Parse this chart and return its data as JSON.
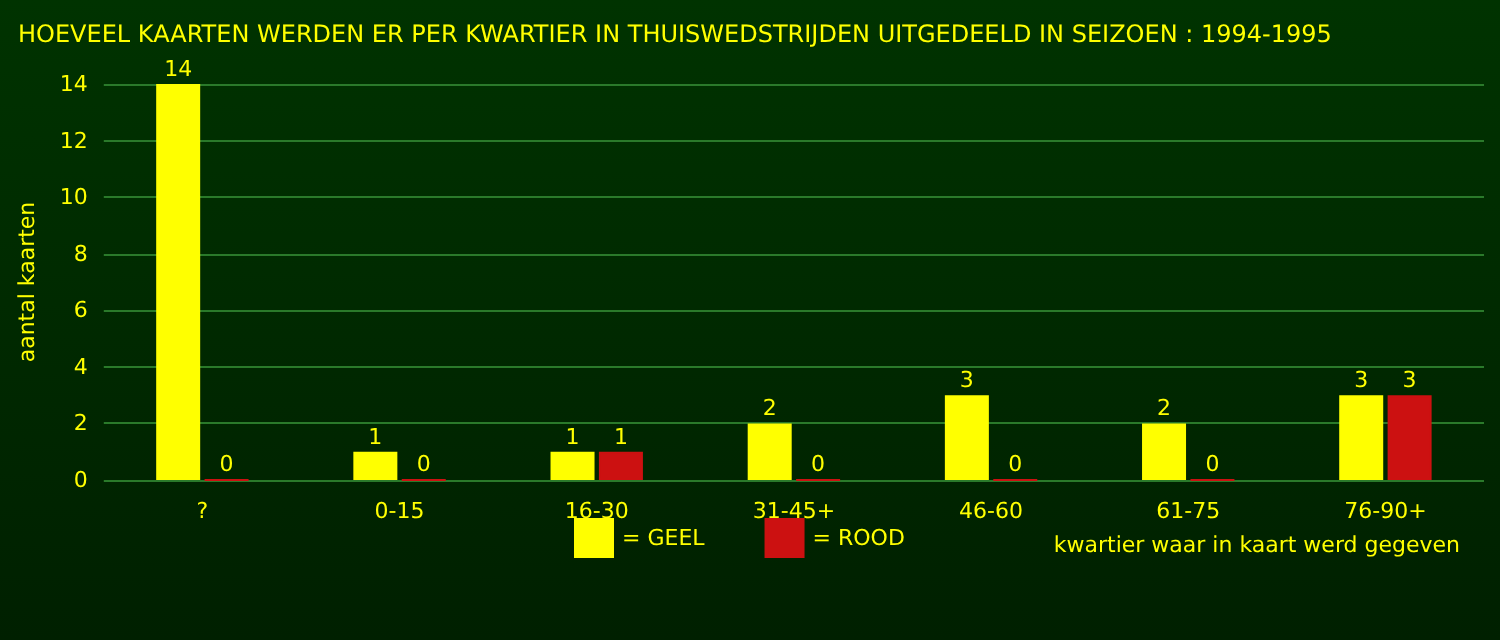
{
  "chart_data": {
    "type": "bar",
    "title": "HOEVEEL KAARTEN WERDEN ER PER KWARTIER IN THUISWEDSTRIJDEN UITGEDEELD IN SEIZOEN : 1994-1995",
    "xlabel": "kwartier waar in kaart werd gegeven",
    "ylabel": "aantal kaarten",
    "categories": [
      "?",
      "0-15",
      "16-30",
      "31-45+",
      "46-60",
      "61-75",
      "76-90+"
    ],
    "series": [
      {
        "name": "= GEEL",
        "color": "#ffff00",
        "values": [
          14,
          1,
          1,
          2,
          3,
          2,
          3
        ]
      },
      {
        "name": "= ROOD",
        "color": "#cc1111",
        "values": [
          0,
          0,
          1,
          0,
          0,
          0,
          3
        ]
      }
    ],
    "ylim": [
      0,
      14
    ],
    "yticks": [
      0,
      2,
      4,
      6,
      8,
      10,
      12,
      14
    ],
    "grid": "y",
    "legend": "bottom",
    "data_labels": true
  }
}
